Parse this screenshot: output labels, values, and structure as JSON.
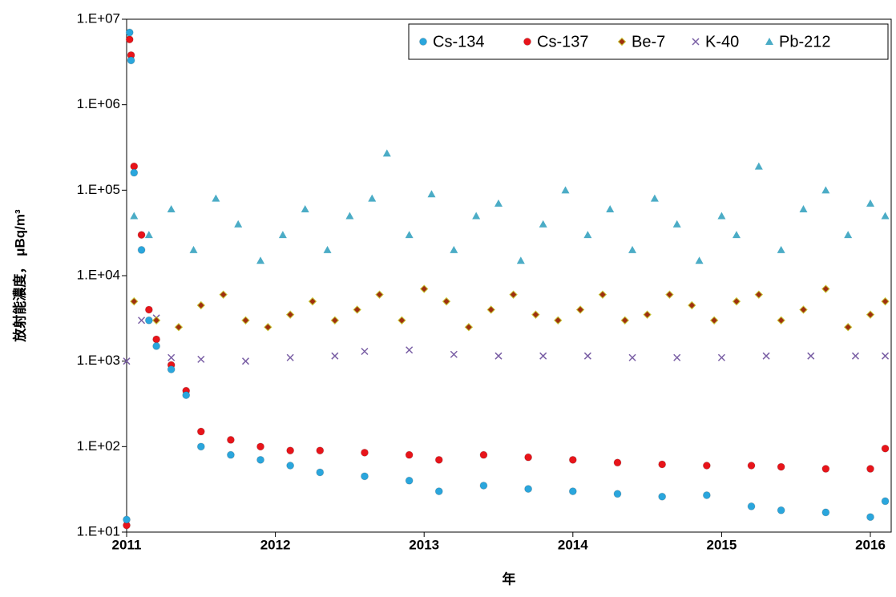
{
  "chart_data": {
    "type": "scatter",
    "x_label": "年",
    "y_label": "放射能濃度， μBq/m³",
    "log_y": true,
    "xlim": [
      2011,
      2016.14
    ],
    "xticks": [
      2011,
      2012,
      2013,
      2014,
      2015,
      2016
    ],
    "ylim": [
      10,
      10000000
    ],
    "yticks": [
      {
        "value": 10,
        "label": "1.E+01"
      },
      {
        "value": 100,
        "label": "1.E+02"
      },
      {
        "value": 1000,
        "label": "1.E+03"
      },
      {
        "value": 10000,
        "label": "1.E+04"
      },
      {
        "value": 100000,
        "label": "1.E+05"
      },
      {
        "value": 1000000,
        "label": "1.E+06"
      },
      {
        "value": 10000000,
        "label": "1.E+07"
      }
    ],
    "legend": "top-right",
    "series": [
      {
        "name": "Cs-134",
        "color": "#2aa6dd",
        "marker": "circle",
        "x": [
          2011.0,
          2011.02,
          2011.03,
          2011.05,
          2011.1,
          2011.15,
          2011.2,
          2011.3,
          2011.4,
          2011.5,
          2011.7,
          2011.9,
          2012.1,
          2012.3,
          2012.6,
          2012.9,
          2013.1,
          2013.4,
          2013.7,
          2014.0,
          2014.3,
          2014.6,
          2014.9,
          2015.2,
          2015.4,
          2015.7,
          2016.0,
          2016.1
        ],
        "values": [
          14,
          7000000,
          3300000,
          160000,
          20000,
          3000,
          1500,
          800,
          400,
          100,
          80,
          70,
          60,
          50,
          45,
          40,
          30,
          35,
          32,
          30,
          28,
          26,
          27,
          20,
          18,
          17,
          15,
          23
        ]
      },
      {
        "name": "Cs-137",
        "color": "#e8141a",
        "marker": "circle",
        "x": [
          2011.0,
          2011.02,
          2011.03,
          2011.05,
          2011.1,
          2011.15,
          2011.2,
          2011.3,
          2011.4,
          2011.5,
          2011.7,
          2011.9,
          2012.1,
          2012.3,
          2012.6,
          2012.9,
          2013.1,
          2013.4,
          2013.7,
          2014.0,
          2014.3,
          2014.6,
          2014.9,
          2015.2,
          2015.4,
          2015.7,
          2016.0,
          2016.1
        ],
        "values": [
          12,
          5800000,
          3800000,
          190000,
          30000,
          4000,
          1800,
          900,
          450,
          150,
          120,
          100,
          90,
          90,
          85,
          80,
          70,
          80,
          75,
          70,
          65,
          62,
          60,
          60,
          58,
          55,
          55,
          95
        ]
      },
      {
        "name": "Be-7",
        "color": "#a0300f",
        "marker": "diamond",
        "x": [
          2011.05,
          2011.2,
          2011.35,
          2011.5,
          2011.65,
          2011.8,
          2011.95,
          2012.1,
          2012.25,
          2012.4,
          2012.55,
          2012.7,
          2012.85,
          2013.0,
          2013.15,
          2013.3,
          2013.45,
          2013.6,
          2013.75,
          2013.9,
          2014.05,
          2014.2,
          2014.35,
          2014.5,
          2014.65,
          2014.8,
          2014.95,
          2015.1,
          2015.25,
          2015.4,
          2015.55,
          2015.7,
          2015.85,
          2016.0,
          2016.1
        ],
        "values": [
          5000,
          3000,
          2500,
          4500,
          6000,
          3000,
          2500,
          3500,
          5000,
          3000,
          4000,
          6000,
          3000,
          7000,
          5000,
          2500,
          4000,
          6000,
          3500,
          3000,
          4000,
          6000,
          3000,
          3500,
          6000,
          4500,
          3000,
          5000,
          6000,
          3000,
          4000,
          7000,
          2500,
          3500,
          5000
        ]
      },
      {
        "name": "K-40",
        "color": "#7a5fa5",
        "marker": "x",
        "x": [
          2011.0,
          2011.1,
          2011.2,
          2011.3,
          2011.5,
          2011.8,
          2012.1,
          2012.4,
          2012.6,
          2012.9,
          2013.2,
          2013.5,
          2013.8,
          2014.1,
          2014.4,
          2014.7,
          2015.0,
          2015.3,
          2015.6,
          2015.9,
          2016.1
        ],
        "values": [
          1000,
          3000,
          3200,
          1100,
          1050,
          1000,
          1100,
          1150,
          1300,
          1350,
          1200,
          1150,
          1150,
          1150,
          1100,
          1100,
          1100,
          1150,
          1150,
          1150,
          1150
        ]
      },
      {
        "name": "Pb-212",
        "color": "#4bacc6",
        "marker": "triangle",
        "x": [
          2011.05,
          2011.15,
          2011.3,
          2011.45,
          2011.6,
          2011.75,
          2011.9,
          2012.05,
          2012.2,
          2012.35,
          2012.5,
          2012.65,
          2012.75,
          2012.9,
          2013.05,
          2013.2,
          2013.35,
          2013.5,
          2013.65,
          2013.8,
          2013.95,
          2014.1,
          2014.25,
          2014.4,
          2014.55,
          2014.7,
          2014.85,
          2015.0,
          2015.1,
          2015.25,
          2015.4,
          2015.55,
          2015.7,
          2015.85,
          2016.0,
          2016.1
        ],
        "values": [
          50000,
          30000,
          60000,
          20000,
          80000,
          40000,
          15000,
          30000,
          60000,
          20000,
          50000,
          80000,
          270000,
          30000,
          90000,
          20000,
          50000,
          70000,
          15000,
          40000,
          100000,
          30000,
          60000,
          20000,
          80000,
          40000,
          15000,
          50000,
          30000,
          190000,
          20000,
          60000,
          100000,
          30000,
          70000,
          50000
        ]
      }
    ]
  }
}
